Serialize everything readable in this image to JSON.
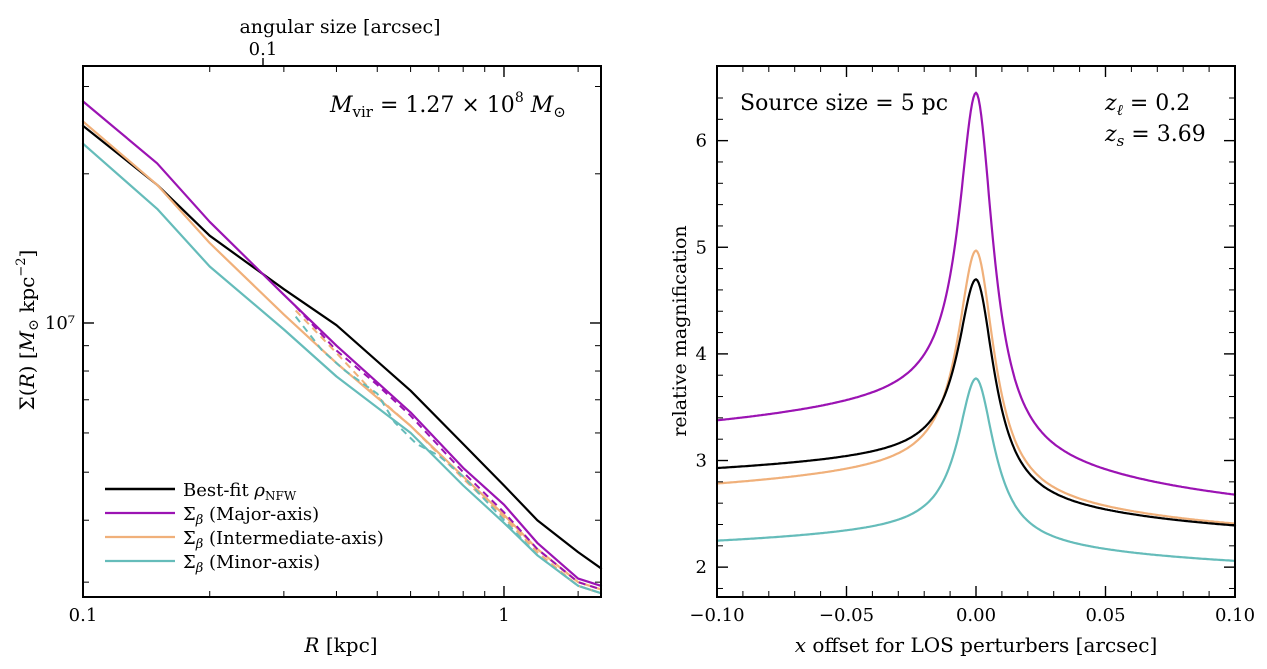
{
  "chart_data": [
    {
      "type": "line",
      "xscale": "log",
      "yscale": "log",
      "xlabel": "R [kpc]",
      "ylabel": "Σ(R) [M⊙ kpc⁻²]",
      "top_xlabel": "angular size [arcsec]",
      "top_xtick_labels": [
        {
          "label": "0.1",
          "x": 0.1
        }
      ],
      "annotation": "M_vir = 1.27 × 10^8 M⊙",
      "xlim": [
        0.1,
        1.7
      ],
      "ylim": [
        2800000,
        33000000
      ],
      "x_tick_labels": [
        {
          "label": "0.1",
          "x": 0.1
        },
        {
          "label": "1",
          "x": 1
        }
      ],
      "y_tick_labels": [
        {
          "label": "10^7",
          "y": 10000000
        }
      ],
      "legend_position": "lower-left",
      "legend": [
        {
          "label": "Best-fit ρNFW",
          "color": "#000000"
        },
        {
          "label": "Σβ (Major-axis)",
          "color": "#9b13b3"
        },
        {
          "label": "Σβ (Intermediate-axis)",
          "color": "#f0b07a"
        },
        {
          "label": "Σβ (Minor-axis)",
          "color": "#65bcba"
        }
      ],
      "series": [
        {
          "color": "#000000",
          "style": "solid",
          "x": [
            0.1,
            0.15,
            0.2,
            0.3,
            0.4,
            0.6,
            0.8,
            1.0,
            1.2,
            1.5,
            1.7
          ],
          "y": [
            25000000,
            19000000,
            15000000,
            11700000,
            9900000,
            7300000,
            5700000,
            4700000,
            4000000,
            3450000,
            3200000
          ]
        },
        {
          "color": "#9b13b3",
          "style": "solid",
          "x": [
            0.1,
            0.15,
            0.2,
            0.3,
            0.4,
            0.6,
            0.8,
            1.0,
            1.2,
            1.5,
            1.7
          ],
          "y": [
            28000000,
            21000000,
            16000000,
            11400000,
            9000000,
            6600000,
            5100000,
            4300000,
            3600000,
            3050000,
            2950000
          ]
        },
        {
          "color": "#f0b07a",
          "style": "solid",
          "x": [
            0.1,
            0.15,
            0.2,
            0.3,
            0.4,
            0.6,
            0.8,
            1.0,
            1.2,
            1.5,
            1.7
          ],
          "y": [
            25500000,
            19000000,
            14500000,
            10400000,
            8300000,
            6200000,
            4900000,
            4100000,
            3500000,
            3000000,
            2900000
          ]
        },
        {
          "color": "#65bcba",
          "style": "solid",
          "x": [
            0.1,
            0.15,
            0.2,
            0.3,
            0.4,
            0.6,
            0.8,
            1.0,
            1.2,
            1.5,
            1.7
          ],
          "y": [
            23000000,
            17000000,
            13000000,
            9700000,
            7800000,
            6000000,
            4700000,
            3950000,
            3400000,
            2950000,
            2850000
          ]
        },
        {
          "color": "#9b13b3",
          "style": "dashed",
          "x": [
            0.32,
            0.4,
            0.5,
            0.6,
            0.8,
            1.0,
            1.2,
            1.5,
            1.7
          ],
          "y": [
            10800000,
            8800000,
            7500000,
            6500000,
            5000000,
            4150000,
            3500000,
            3000000,
            2900000
          ]
        },
        {
          "color": "#f0b07a",
          "style": "dashed",
          "x": [
            0.32,
            0.4,
            0.5,
            0.6,
            0.8,
            1.0,
            1.2,
            1.5,
            1.7
          ],
          "y": [
            10600000,
            8700000,
            7100000,
            6200000,
            4850000,
            4050000,
            3450000,
            2950000,
            2850000
          ]
        },
        {
          "color": "#65bcba",
          "style": "dashed",
          "x": [
            0.32,
            0.37,
            0.42,
            0.5,
            0.55,
            0.62,
            0.7,
            0.8,
            1.0,
            1.2,
            1.5,
            1.7
          ],
          "y": [
            10300000,
            8800000,
            8000000,
            7200000,
            6300000,
            5700000,
            5400000,
            4900000,
            4000000,
            3400000,
            2950000,
            2850000
          ]
        }
      ]
    },
    {
      "type": "line",
      "xlabel": "x offset for LOS perturbers [arcsec]",
      "ylabel": "relative magnification",
      "annotation_left": "Source size = 5 pc",
      "annotation_right": [
        "z_ℓ = 0.2",
        "z_s = 3.69"
      ],
      "xlim": [
        -0.1,
        0.1
      ],
      "ylim": [
        1.72,
        6.7
      ],
      "x_tick_labels": [
        {
          "label": "−0.10",
          "x": -0.1
        },
        {
          "label": "−0.05",
          "x": -0.05
        },
        {
          "label": "0.00",
          "x": 0
        },
        {
          "label": "0.05",
          "x": 0.05
        },
        {
          "label": "0.10",
          "x": 0.1
        }
      ],
      "y_tick_labels": [
        {
          "label": "2",
          "y": 2
        },
        {
          "label": "3",
          "y": 3
        },
        {
          "label": "4",
          "y": 4
        },
        {
          "label": "5",
          "y": 5
        },
        {
          "label": "6",
          "y": 6
        }
      ],
      "series": [
        {
          "color": "#9b13b3",
          "peak": 6.45,
          "left": 3.12,
          "right": 2.42,
          "width": 0.008
        },
        {
          "color": "#f0b07a",
          "peak": 4.97,
          "left": 2.6,
          "right": 2.23,
          "width": 0.0085
        },
        {
          "color": "#000000",
          "peak": 4.7,
          "left": 2.78,
          "right": 2.23,
          "width": 0.0085
        },
        {
          "color": "#65bcba",
          "peak": 3.77,
          "left": 2.12,
          "right": 1.94,
          "width": 0.0085
        }
      ]
    }
  ]
}
